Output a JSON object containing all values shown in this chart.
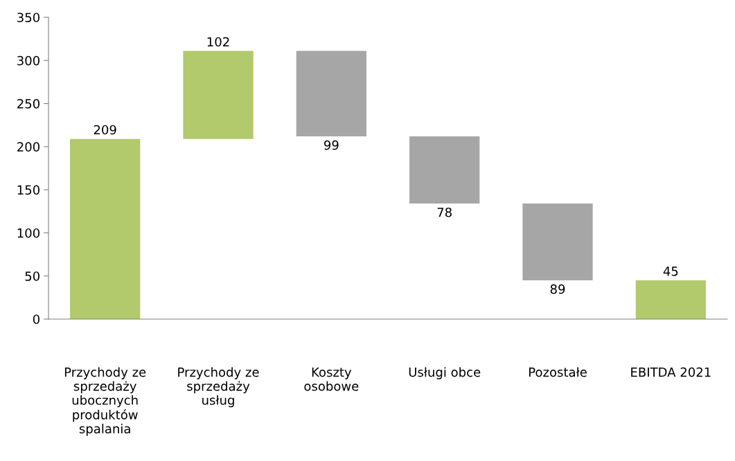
{
  "chart_data": {
    "type": "bar",
    "categories": [
      "Przychody ze sprzedaży ubocznych produktów spalania",
      "Przychody ze sprzedaży usług",
      "Koszty osobowe",
      "Usługi obce",
      "Pozostałe",
      "EBITDA 2021"
    ],
    "values": [
      209,
      102,
      -99,
      -78,
      -89,
      45
    ],
    "base": [
      0,
      209,
      311,
      212,
      134,
      0
    ],
    "colors": [
      "#b2c96c",
      "#b2c96c",
      "#a6a6a6",
      "#a6a6a6",
      "#a6a6a6",
      "#b2c96c"
    ],
    "value_labels": [
      "209",
      "102",
      "99",
      "78",
      "89",
      "45"
    ],
    "ylim": [
      0,
      350
    ],
    "yticks": [
      0,
      50,
      100,
      150,
      200,
      250,
      300,
      350
    ],
    "grid": false,
    "legend": false
  }
}
